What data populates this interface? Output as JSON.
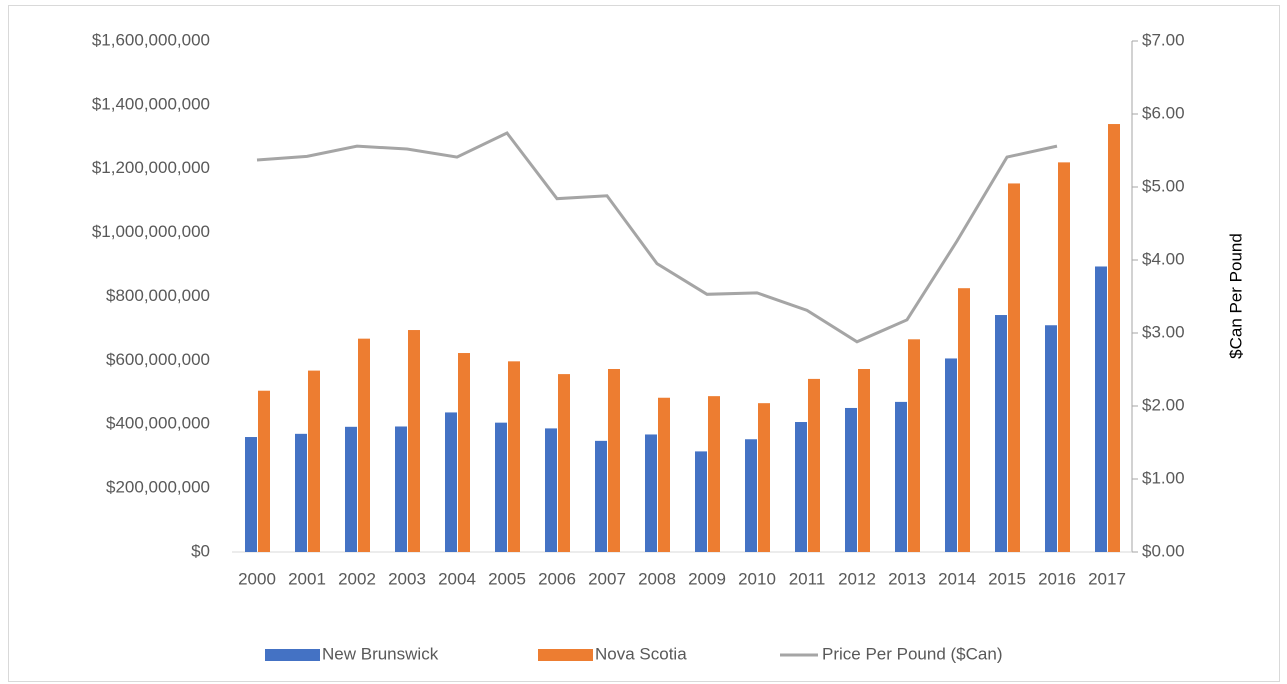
{
  "chart_data": {
    "type": "bar",
    "categories": [
      "2000",
      "2001",
      "2002",
      "2003",
      "2004",
      "2005",
      "2006",
      "2007",
      "2008",
      "2009",
      "2010",
      "2011",
      "2012",
      "2013",
      "2014",
      "2015",
      "2016",
      "2017"
    ],
    "series": [
      {
        "name": "New Brunswick",
        "color": "#4472c4",
        "values": [
          360000000,
          370000000,
          392000000,
          393000000,
          437000000,
          405000000,
          387000000,
          348000000,
          368000000,
          315000000,
          353000000,
          407000000,
          451000000,
          470000000,
          606000000,
          742000000,
          710000000,
          894000000
        ]
      },
      {
        "name": "Nova Scotia",
        "color": "#ed7d31",
        "values": [
          505000000,
          568000000,
          668000000,
          695000000,
          623000000,
          597000000,
          557000000,
          573000000,
          483000000,
          488000000,
          466000000,
          542000000,
          573000000,
          666000000,
          826000000,
          1154000000,
          1220000000,
          1340000000
        ]
      },
      {
        "name": "Price Per Pound ($Can)",
        "color": "#a5a5a5",
        "type": "line",
        "axis": "y2",
        "values": [
          5.37,
          5.42,
          5.56,
          5.52,
          5.41,
          5.74,
          4.84,
          4.88,
          3.95,
          3.53,
          3.55,
          3.31,
          2.88,
          3.18,
          4.26,
          5.41,
          5.56,
          null
        ]
      }
    ],
    "ylim": [
      0,
      1600000000
    ],
    "yticks": [
      {
        "value": 0,
        "label": "$0"
      },
      {
        "value": 200000000,
        "label": "$200,000,000"
      },
      {
        "value": 400000000,
        "label": "$400,000,000"
      },
      {
        "value": 600000000,
        "label": "$600,000,000"
      },
      {
        "value": 800000000,
        "label": "$800,000,000"
      },
      {
        "value": 1000000000,
        "label": "$1,000,000,000"
      },
      {
        "value": 1200000000,
        "label": "$1,200,000,000"
      },
      {
        "value": 1400000000,
        "label": "$1,400,000,000"
      },
      {
        "value": 1600000000,
        "label": "$1,600,000,000"
      }
    ],
    "y2lim": [
      0,
      7
    ],
    "y2ticks": [
      {
        "value": 0,
        "label": "$0.00"
      },
      {
        "value": 1,
        "label": "$1.00"
      },
      {
        "value": 2,
        "label": "$2.00"
      },
      {
        "value": 3,
        "label": "$3.00"
      },
      {
        "value": 4,
        "label": "$4.00"
      },
      {
        "value": 5,
        "label": "$5.00"
      },
      {
        "value": 6,
        "label": "$6.00"
      },
      {
        "value": 7,
        "label": "$7.00"
      }
    ],
    "y2label": "$Can Per Pound",
    "legend": "bottom"
  }
}
